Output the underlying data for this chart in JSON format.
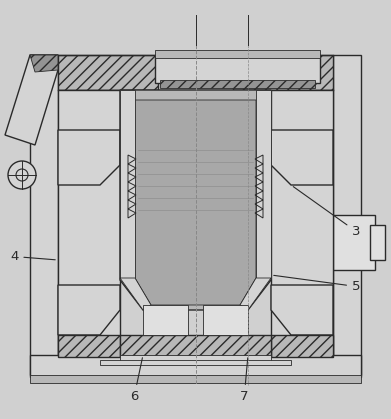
{
  "bg_color": "#d0d0d0",
  "line_color": "#2a2a2a",
  "figsize": [
    3.91,
    4.19
  ],
  "dpi": 100,
  "gray_light": "#d4d4d4",
  "gray_med": "#b8b8b8",
  "gray_dark": "#949494",
  "gray_inner": "#a8a8a8",
  "white_ish": "#e0e0e0"
}
